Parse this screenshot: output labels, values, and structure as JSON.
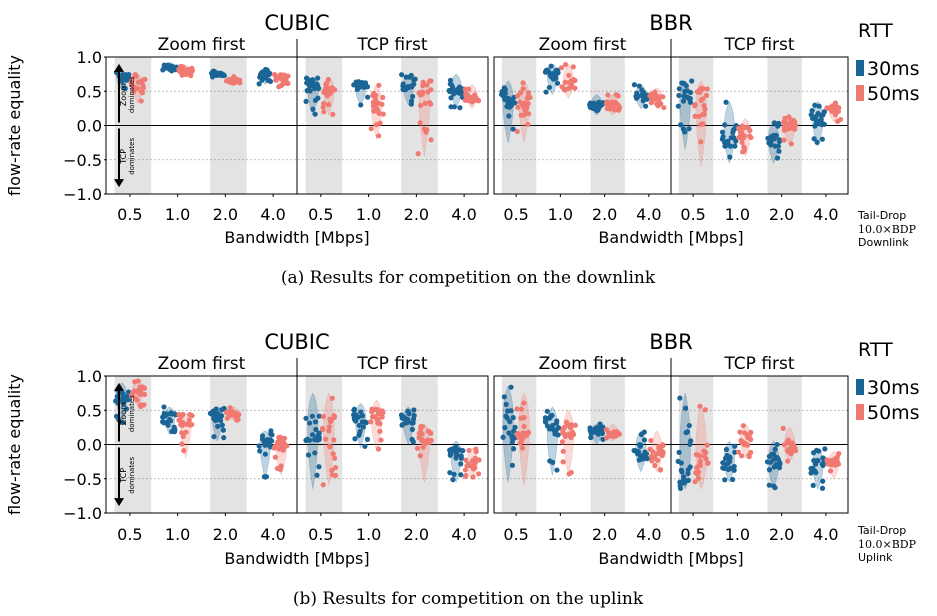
{
  "colors": {
    "rtt_30": "#1a6496",
    "rtt_50": "#f07a72",
    "band": "#e3e3e3",
    "grid": "#888888"
  },
  "legend": {
    "title": "RTT",
    "entries": [
      "30ms",
      "50ms"
    ]
  },
  "figures": [
    {
      "caption": "(a) Results for competition on the downlink",
      "side_note": [
        "Tail-Drop",
        "10.0×BDP",
        "Downlink"
      ]
    },
    {
      "caption": "(b) Results for competition on the uplink",
      "side_note": [
        "Tail-Drop",
        "10.0×BDP",
        "Uplink"
      ]
    }
  ],
  "chart_data": [
    {
      "type": "violin-strip",
      "direction": "Downlink",
      "ylabel": "flow-rate equality",
      "xlabel": "Bandwidth [Mbps]",
      "ylim": [
        -1.0,
        1.0
      ],
      "yticks": [
        "−1.0",
        "−0.5",
        "0.0",
        "0.5",
        "1.0"
      ],
      "dotted_gridlines": [
        0.5,
        -0.5
      ],
      "zero_line": 0.0,
      "arrow_up_label": [
        "Zoom",
        "dominates"
      ],
      "arrow_down_label": [
        "TCP",
        "dominates"
      ],
      "categories": [
        "0.5",
        "1.0",
        "2.0",
        "4.0"
      ],
      "groups": [
        {
          "title": "CUBIC",
          "panels": [
            {
              "title": "Zoom first",
              "series": [
                {
                  "name": "30ms",
                  "median": [
                    0.7,
                    0.86,
                    0.75,
                    0.75
                  ],
                  "range": [
                    [
                      0.53,
                      0.8
                    ],
                    [
                      0.78,
                      0.92
                    ],
                    [
                      0.7,
                      0.8
                    ],
                    [
                      0.6,
                      0.82
                    ]
                  ]
                },
                {
                  "name": "50ms",
                  "median": [
                    0.6,
                    0.8,
                    0.66,
                    0.7
                  ],
                  "range": [
                    [
                      0.32,
                      0.75
                    ],
                    [
                      0.72,
                      0.88
                    ],
                    [
                      0.62,
                      0.72
                    ],
                    [
                      0.55,
                      0.78
                    ]
                  ]
                }
              ]
            },
            {
              "title": "TCP first",
              "series": [
                {
                  "name": "30ms",
                  "median": [
                    0.6,
                    0.58,
                    0.6,
                    0.55
                  ],
                  "range": [
                    [
                      0.15,
                      0.7
                    ],
                    [
                      0.3,
                      0.65
                    ],
                    [
                      0.3,
                      0.75
                    ],
                    [
                      0.25,
                      0.75
                    ]
                  ]
                },
                {
                  "name": "50ms",
                  "median": [
                    0.55,
                    0.3,
                    0.5,
                    0.4
                  ],
                  "range": [
                    [
                      0.15,
                      0.7
                    ],
                    [
                      -0.2,
                      0.6
                    ],
                    [
                      -0.45,
                      0.65
                    ],
                    [
                      0.25,
                      0.6
                    ]
                  ]
                }
              ]
            }
          ]
        },
        {
          "title": "BBR",
          "panels": [
            {
              "title": "Zoom first",
              "series": [
                {
                  "name": "30ms",
                  "median": [
                    0.4,
                    0.75,
                    0.3,
                    0.42
                  ],
                  "range": [
                    [
                      -0.25,
                      0.65
                    ],
                    [
                      0.45,
                      0.9
                    ],
                    [
                      0.15,
                      0.45
                    ],
                    [
                      0.25,
                      0.6
                    ]
                  ]
                },
                {
                  "name": "50ms",
                  "median": [
                    0.4,
                    0.6,
                    0.3,
                    0.42
                  ],
                  "range": [
                    [
                      -0.25,
                      0.65
                    ],
                    [
                      0.4,
                      0.9
                    ],
                    [
                      0.15,
                      0.45
                    ],
                    [
                      0.25,
                      0.55
                    ]
                  ]
                }
              ]
            },
            {
              "title": "TCP first",
              "series": [
                {
                  "name": "30ms",
                  "median": [
                    0.45,
                    -0.15,
                    -0.2,
                    0.1
                  ],
                  "range": [
                    [
                      -0.35,
                      0.65
                    ],
                    [
                      -0.55,
                      0.35
                    ],
                    [
                      -0.55,
                      0.05
                    ],
                    [
                      -0.3,
                      0.35
                    ]
                  ]
                },
                {
                  "name": "50ms",
                  "median": [
                    0.35,
                    -0.1,
                    0.0,
                    0.25
                  ],
                  "range": [
                    [
                      -0.6,
                      0.65
                    ],
                    [
                      -0.45,
                      0.1
                    ],
                    [
                      -0.3,
                      0.15
                    ],
                    [
                      0.05,
                      0.35
                    ]
                  ]
                }
              ]
            }
          ]
        }
      ]
    },
    {
      "type": "violin-strip",
      "direction": "Uplink",
      "ylabel": "flow-rate equality",
      "xlabel": "Bandwidth [Mbps]",
      "ylim": [
        -1.0,
        1.0
      ],
      "yticks": [
        "−1.0",
        "−0.5",
        "0.0",
        "0.5",
        "1.0"
      ],
      "dotted_gridlines": [
        0.5,
        -0.5
      ],
      "zero_line": 0.0,
      "arrow_up_label": [
        "Zoom",
        "dominates"
      ],
      "arrow_down_label": [
        "TCP",
        "dominates"
      ],
      "categories": [
        "0.5",
        "1.0",
        "2.0",
        "4.0"
      ],
      "groups": [
        {
          "title": "CUBIC",
          "panels": [
            {
              "title": "Zoom first",
              "series": [
                {
                  "name": "30ms",
                  "median": [
                    0.7,
                    0.4,
                    0.45,
                    0.1
                  ],
                  "range": [
                    [
                      0.3,
                      0.9
                    ],
                    [
                      0.15,
                      0.55
                    ],
                    [
                      0.05,
                      0.55
                    ],
                    [
                      -0.5,
                      0.2
                    ]
                  ]
                },
                {
                  "name": "50ms",
                  "median": [
                    0.78,
                    0.35,
                    0.45,
                    0.0
                  ],
                  "range": [
                    [
                      0.55,
                      0.95
                    ],
                    [
                      -0.2,
                      0.45
                    ],
                    [
                      0.35,
                      0.55
                    ],
                    [
                      -0.45,
                      0.15
                    ]
                  ]
                }
              ]
            },
            {
              "title": "TCP first",
              "series": [
                {
                  "name": "30ms",
                  "median": [
                    0.3,
                    0.4,
                    0.35,
                    -0.1
                  ],
                  "range": [
                    [
                      -0.65,
                      0.75
                    ],
                    [
                      -0.05,
                      0.6
                    ],
                    [
                      0.0,
                      0.55
                    ],
                    [
                      -0.55,
                      0.05
                    ]
                  ]
                },
                {
                  "name": "50ms",
                  "median": [
                    0.2,
                    0.4,
                    0.15,
                    -0.3
                  ],
                  "range": [
                    [
                      -0.6,
                      0.75
                    ],
                    [
                      -0.1,
                      0.65
                    ],
                    [
                      -0.55,
                      0.3
                    ],
                    [
                      -0.5,
                      -0.05
                    ]
                  ]
                }
              ]
            }
          ]
        },
        {
          "title": "BBR",
          "panels": [
            {
              "title": "Zoom first",
              "series": [
                {
                  "name": "30ms",
                  "median": [
                    0.3,
                    0.25,
                    0.2,
                    -0.1
                  ],
                  "range": [
                    [
                      -0.55,
                      0.85
                    ],
                    [
                      -0.45,
                      0.55
                    ],
                    [
                      0.0,
                      0.3
                    ],
                    [
                      -0.4,
                      0.2
                    ]
                  ]
                },
                {
                  "name": "50ms",
                  "median": [
                    0.3,
                    0.2,
                    0.15,
                    -0.1
                  ],
                  "range": [
                    [
                      -0.6,
                      0.75
                    ],
                    [
                      -0.45,
                      0.5
                    ],
                    [
                      0.05,
                      0.3
                    ],
                    [
                      -0.4,
                      0.2
                    ]
                  ]
                }
              ]
            },
            {
              "title": "TCP first",
              "series": [
                {
                  "name": "30ms",
                  "median": [
                    -0.4,
                    -0.25,
                    -0.25,
                    -0.3
                  ],
                  "range": [
                    [
                      -0.65,
                      0.75
                    ],
                    [
                      -0.55,
                      0.05
                    ],
                    [
                      -0.65,
                      0.05
                    ],
                    [
                      -0.65,
                      -0.05
                    ]
                  ]
                },
                {
                  "name": "50ms",
                  "median": [
                    -0.35,
                    0.1,
                    -0.05,
                    -0.25
                  ],
                  "range": [
                    [
                      -0.65,
                      0.6
                    ],
                    [
                      -0.2,
                      0.3
                    ],
                    [
                      -0.25,
                      0.25
                    ],
                    [
                      -0.5,
                      -0.1
                    ]
                  ]
                }
              ]
            }
          ]
        }
      ]
    }
  ]
}
